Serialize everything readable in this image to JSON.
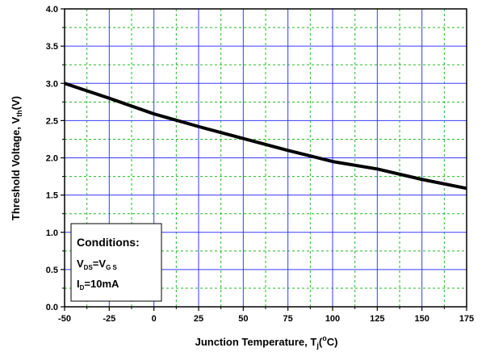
{
  "chart_data": {
    "type": "line",
    "title": "",
    "xlabel": {
      "main": "Junction Temperature, T",
      "sub": "j",
      "paren_open": "(",
      "sup": "o",
      "unit": "C)"
    },
    "ylabel": {
      "main": "Threshold Voltage, V",
      "sub": "th",
      "unit": "(V)"
    },
    "xlim": [
      -50,
      175
    ],
    "ylim": [
      0.0,
      4.0
    ],
    "x_ticks": [
      "-50",
      "-25",
      "0",
      "25",
      "50",
      "75",
      "100",
      "125",
      "150",
      "175"
    ],
    "y_ticks": [
      "0.0",
      "0.5",
      "1.0",
      "1.5",
      "2.0",
      "2.5",
      "3.0",
      "3.5",
      "4.0"
    ],
    "major_grid": true,
    "minor_grid": true,
    "grid_color_major": "#3a3aff",
    "grid_color_minor": "#22bb22",
    "line_color": "#000000",
    "series": [
      {
        "x": [
          -50,
          -25,
          0,
          25,
          50,
          75,
          100,
          125,
          150,
          175
        ],
        "y": [
          3.0,
          2.8,
          2.59,
          2.42,
          2.26,
          2.1,
          1.95,
          1.85,
          1.71,
          1.59
        ]
      }
    ],
    "annotation": {
      "title": "Conditions:",
      "line1": {
        "a": "V",
        "a_sub": "DS",
        "eq": "=V",
        "b_sub": "G S"
      },
      "line2": {
        "a": "I",
        "a_sub": "D",
        "rest": "=10mA"
      }
    }
  }
}
